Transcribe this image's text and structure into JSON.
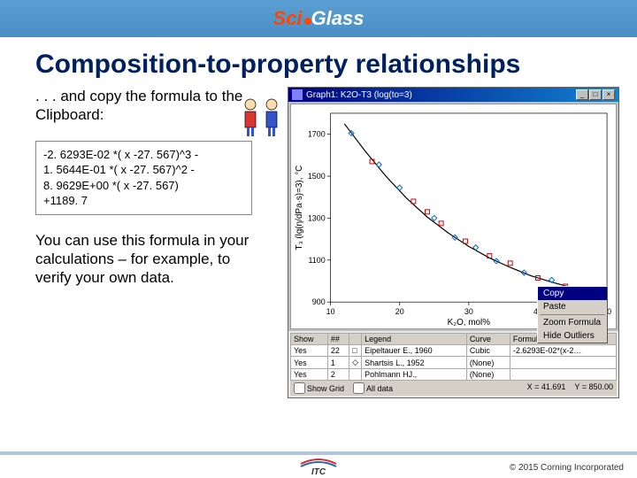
{
  "header": {
    "logo_sci": "Sci",
    "logo_glass": "Glass"
  },
  "title": "Composition-to-property relationships",
  "intro": ". . . and copy the formula to the Clipboard:",
  "formula": {
    "line1": "-2. 6293E-02 *( x -27. 567)^3 -",
    "line2": "1. 5644E-01 *( x -27. 567)^2 -",
    "line3": "8. 9629E+00 *( x -27. 567)",
    "line4": "+1189. 7"
  },
  "explain": "You can use this formula in your calculations – for example, to verify your own data.",
  "app": {
    "title": "Graph1: K2O-T3 (log(to=3)",
    "chart": {
      "ylabel": "T₃ (lg(η/dPa·s)=3), °C",
      "xlabel": "K₂O, mol%",
      "xlim": [
        10,
        50
      ],
      "ylim": [
        900,
        1800
      ],
      "xticks": [
        10,
        20,
        30,
        40,
        50
      ],
      "yticks": [
        900,
        1100,
        1300,
        1500,
        1700
      ],
      "background_color": "#ffffff",
      "grid_color": "#e0e0e0",
      "curve_color": "#000000",
      "curve_points": [
        [
          12,
          1750
        ],
        [
          15,
          1620
        ],
        [
          18,
          1500
        ],
        [
          21,
          1395
        ],
        [
          24,
          1305
        ],
        [
          27,
          1230
        ],
        [
          30,
          1165
        ],
        [
          33,
          1110
        ],
        [
          36,
          1065
        ],
        [
          39,
          1025
        ],
        [
          42,
          995
        ],
        [
          45,
          968
        ],
        [
          48,
          948
        ]
      ],
      "series1": {
        "marker": "square",
        "color": "#cc0000",
        "points": [
          [
            16,
            1570
          ],
          [
            22,
            1380
          ],
          [
            24,
            1330
          ],
          [
            26,
            1275
          ],
          [
            29.5,
            1190
          ],
          [
            33,
            1120
          ],
          [
            36,
            1085
          ],
          [
            40,
            1015
          ],
          [
            44,
            975
          ]
        ]
      },
      "series2": {
        "marker": "diamond",
        "color": "#0066cc",
        "points": [
          [
            13,
            1705
          ],
          [
            17,
            1555
          ],
          [
            20,
            1445
          ],
          [
            25,
            1300
          ],
          [
            28,
            1208
          ],
          [
            31,
            1160
          ],
          [
            34,
            1095
          ],
          [
            38,
            1040
          ],
          [
            42,
            1005
          ],
          [
            46,
            955
          ]
        ]
      }
    },
    "table": {
      "headers": [
        "Show",
        "##",
        "",
        "Legend",
        "Curve",
        "Formula"
      ],
      "rows": [
        [
          "Yes",
          "22",
          "□",
          "Eipeltauer E., 1960",
          "Cubic",
          "-2.6293E-02*(x-2…"
        ],
        [
          "Yes",
          "1",
          "◇",
          "Shartsis L., 1952",
          "(None)",
          ""
        ],
        [
          "Yes",
          "2",
          "",
          "Pohlmann HJ.,",
          "(None)",
          ""
        ]
      ]
    },
    "context_menu": {
      "items": [
        "Copy",
        "Paste",
        "Zoom Formula",
        "Hide Outliers"
      ],
      "selected": 0
    },
    "status": {
      "show_grid": "Show Grid",
      "all_data": "All data",
      "x": "X = 41.691",
      "y": "Y = 850.00"
    }
  },
  "footer": {
    "copyright": "© 2015 Corning Incorporated"
  }
}
